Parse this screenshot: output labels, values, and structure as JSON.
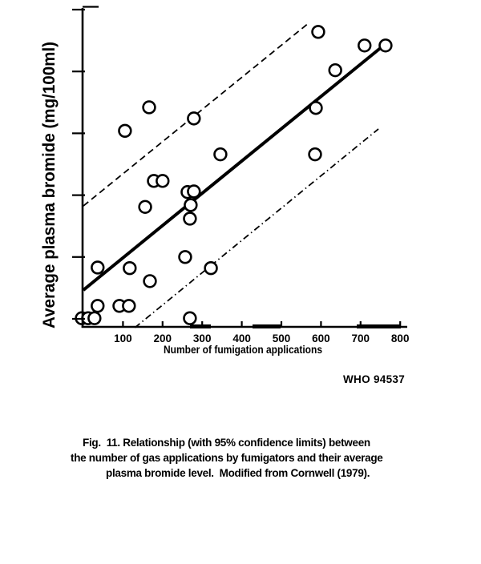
{
  "figure": {
    "who_number": "WHO 94537",
    "caption_lines": [
      "Fig.  11. Relationship (with 95% confidence limits) between",
      "the number of gas applications by fumigators and their average",
      "plasma bromide level.  Modified from Cornwell (1979)."
    ]
  },
  "chart_data": {
    "type": "scatter",
    "title": "",
    "xlabel": "Number of fumigation applications",
    "ylabel": "Average plasma bromide (mg/100ml)",
    "x_ticks": [
      100,
      200,
      300,
      400,
      500,
      600,
      700,
      800
    ],
    "xlim": [
      0,
      820
    ],
    "ylim": [
      0,
      5.15
    ],
    "y_axis_note": "y-axis ticks are unlabeled; y values below are in tick units (0 = bottom tick, 5 = top tick)",
    "y_tick_values": [
      0,
      1,
      2,
      3,
      4,
      5
    ],
    "grid": false,
    "legend": "none",
    "marker": "open-circle",
    "colors": {
      "ink": "#000000",
      "background": "#ffffff"
    },
    "points": [
      [
        593,
        4.64
      ],
      [
        710,
        4.42
      ],
      [
        763,
        4.42
      ],
      [
        636,
        4.02
      ],
      [
        587,
        3.41
      ],
      [
        166,
        3.42
      ],
      [
        279,
        3.24
      ],
      [
        105,
        3.04
      ],
      [
        346,
        2.66
      ],
      [
        585,
        2.66
      ],
      [
        178,
        2.23
      ],
      [
        200,
        2.23
      ],
      [
        263,
        2.05
      ],
      [
        279,
        2.06
      ],
      [
        156,
        1.81
      ],
      [
        271,
        1.84
      ],
      [
        269,
        1.62
      ],
      [
        257,
        1.0
      ],
      [
        36,
        0.83
      ],
      [
        117,
        0.82
      ],
      [
        322,
        0.82
      ],
      [
        168,
        0.61
      ],
      [
        36,
        0.21
      ],
      [
        91,
        0.21
      ],
      [
        115,
        0.21
      ],
      [
        -4,
        0.01
      ],
      [
        12,
        0.01
      ],
      [
        28,
        0.01
      ],
      [
        269,
        0.01
      ]
    ],
    "lines": [
      {
        "name": "regression-line",
        "style": "solid",
        "x": [
          0,
          755
        ],
        "y": [
          0.466,
          4.404
        ]
      },
      {
        "name": "upper-95-confidence-limit",
        "style": "dashed",
        "x": [
          0,
          571
        ],
        "y": [
          1.826,
          4.793
        ]
      },
      {
        "name": "lower-95-confidence-limit",
        "style": "dash-dot",
        "x": [
          130,
          745
        ],
        "y": [
          -0.142,
          3.07
        ]
      }
    ]
  }
}
